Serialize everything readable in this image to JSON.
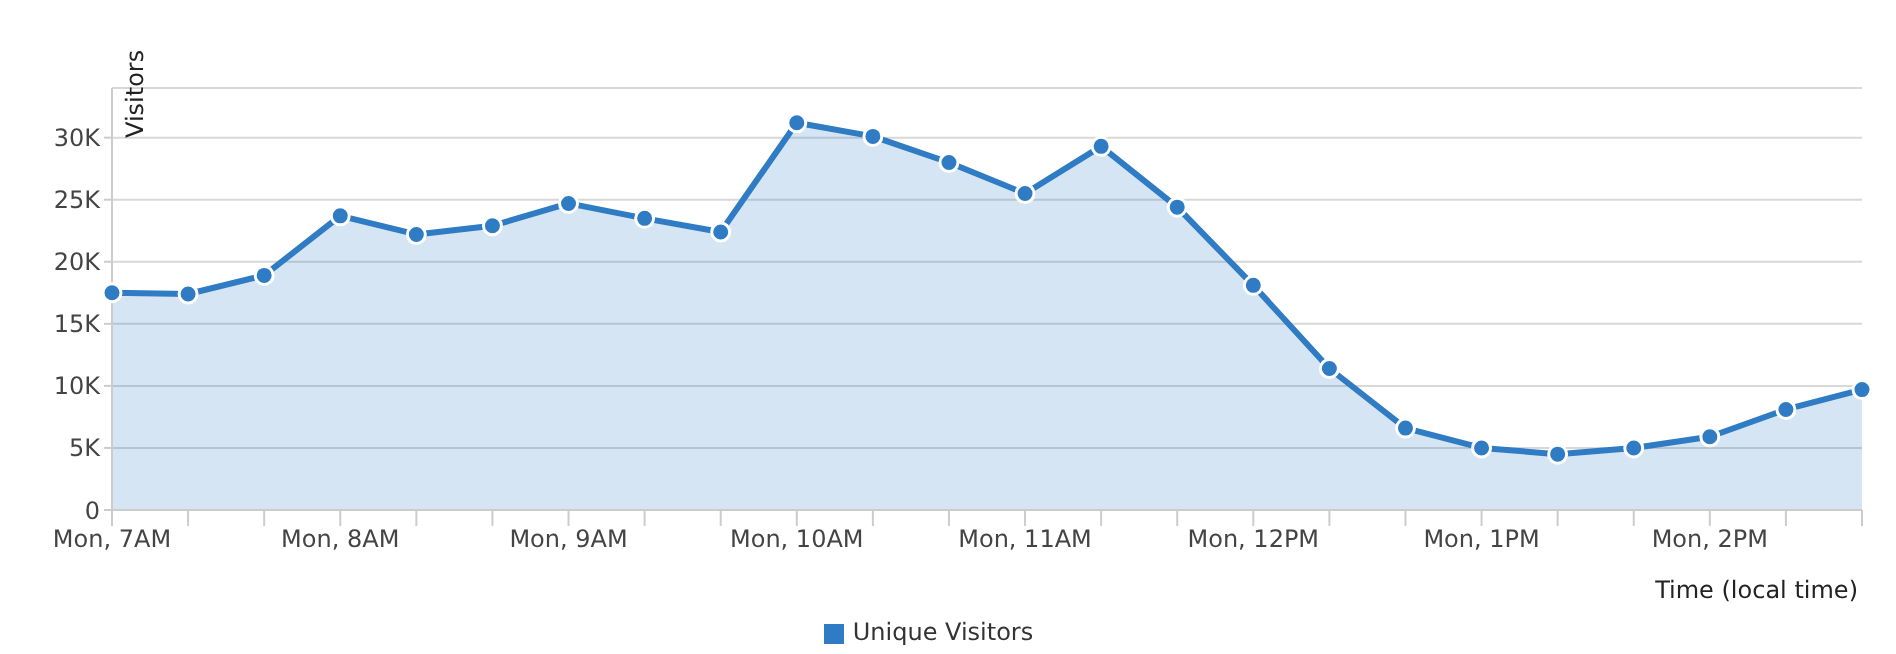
{
  "chart_data": {
    "type": "area",
    "xlabel": "Time (local time)",
    "ylabel": "Visitors",
    "categories": [
      "Mon, 7AM",
      null,
      null,
      "Mon, 8AM",
      null,
      null,
      "Mon, 9AM",
      null,
      null,
      "Mon, 10AM",
      null,
      null,
      "Mon, 11AM",
      null,
      null,
      "Mon, 12PM",
      null,
      null,
      "Mon, 1PM",
      null,
      null,
      "Mon, 2PM",
      null,
      null
    ],
    "series": [
      {
        "name": "Unique Visitors",
        "color": "#2f7bc4",
        "values": [
          17500,
          17400,
          18900,
          23700,
          22200,
          22900,
          24700,
          23500,
          22400,
          31200,
          30100,
          28000,
          25500,
          29300,
          24400,
          18100,
          11400,
          6600,
          5000,
          4500,
          5000,
          5900,
          8100,
          9700
        ]
      }
    ],
    "ylim": [
      0,
      34000
    ],
    "yticks": [
      {
        "value": 0,
        "label": "0"
      },
      {
        "value": 5000,
        "label": "5K"
      },
      {
        "value": 10000,
        "label": "10K"
      },
      {
        "value": 15000,
        "label": "15K"
      },
      {
        "value": 20000,
        "label": "20K"
      },
      {
        "value": 25000,
        "label": "25K"
      },
      {
        "value": 30000,
        "label": "30K"
      }
    ],
    "grid": "y",
    "legend": "bottom",
    "marker": "circle",
    "line_style": "solid"
  }
}
